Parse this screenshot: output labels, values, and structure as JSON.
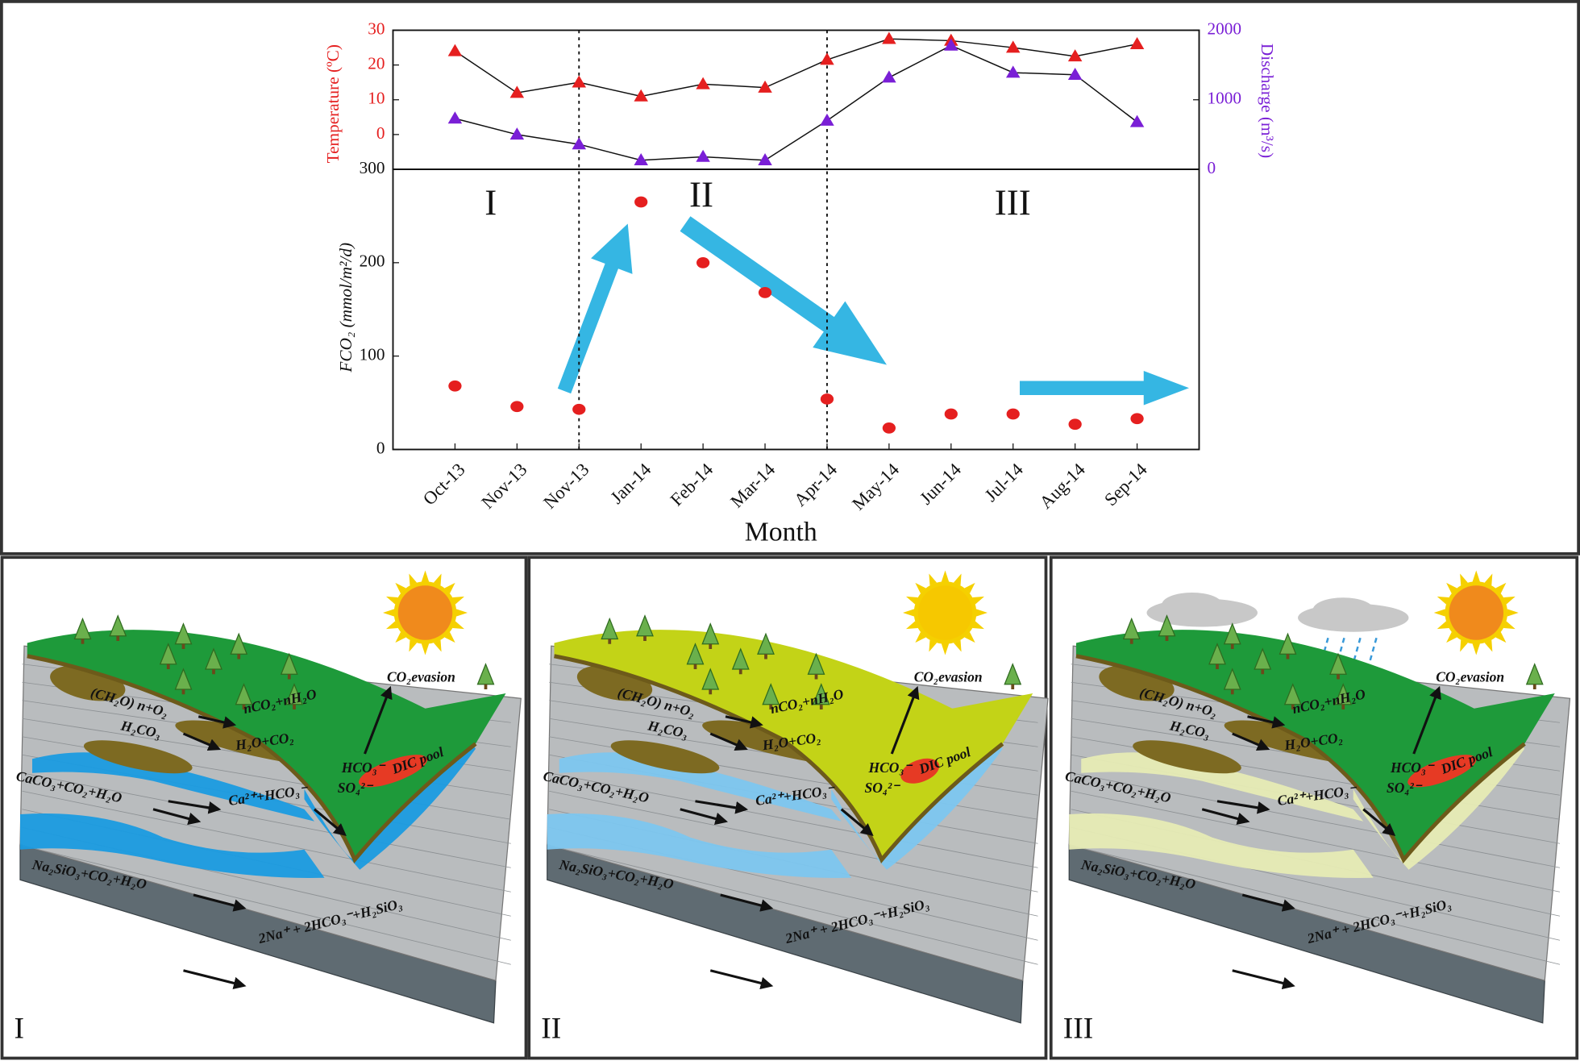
{
  "chart_data": [
    {
      "type": "line",
      "ylabel": "Temperature (ºC)",
      "y2label": "Discharge (m³/s)",
      "ylim": [
        -10,
        30
      ],
      "yticks": [
        0,
        10,
        20,
        30
      ],
      "y2lim": [
        0,
        2000
      ],
      "y2ticks": [
        0,
        1000,
        2000
      ],
      "series": [
        {
          "color": "#e51f1f",
          "values": [
            24,
            12,
            15,
            11,
            14.5,
            13.5,
            21.5,
            27.5,
            27,
            25,
            22.5,
            26
          ]
        },
        {
          "color": "#7a1fd6",
          "axis": "y2",
          "values": [
            730,
            500,
            360,
            130,
            180,
            130,
            700,
            1320,
            1780,
            1390,
            1360,
            680
          ]
        }
      ]
    },
    {
      "type": "scatter",
      "xlabel": "Month",
      "ylabel": "FCO₂ (mmol/m²/d)",
      "categories": [
        "Oct-13",
        "Nov-13",
        "Nov-13",
        "Jan-14",
        "Feb-14",
        "Mar-14",
        "Apr-14",
        "May-14",
        "Jun-14",
        "Jul-14",
        "Aug-14",
        "Sep-14"
      ],
      "values": [
        68,
        46,
        43,
        265,
        200,
        168,
        54,
        23,
        38,
        38,
        27,
        33
      ],
      "color": "#e51f1f",
      "ylim": [
        0,
        300
      ],
      "yticks": [
        0,
        100,
        200,
        300
      ],
      "periods": [
        "I",
        "II",
        "III"
      ]
    }
  ],
  "panels": [
    {
      "label": "I",
      "water": "#1a9be0",
      "land": "#1e9a3a",
      "sun": "#f08a1c",
      "clouds": false,
      "texts": [
        "CO₂evasion",
        "DIC pool",
        "(CH₂O) n+O₂",
        "nCO₂+nH₂O",
        "H₂CO₃",
        "H₂O+CO₂",
        "CaCO₃+CO₂+H₂O",
        "Ca²⁺+HCO₃⁻",
        "HCO₃⁻",
        "SO₄²⁻",
        "Na₂SiO₃+CO₂+H₂O",
        "2Na⁺ + 2HCO₃⁻+H₂SiO₃"
      ]
    },
    {
      "label": "II",
      "water": "#7cc6ef",
      "land": "#c3d317",
      "sun": "#f6c800",
      "clouds": false,
      "texts": [
        "CO₂evasion",
        "DIC pool",
        "(CH₂O) n+O₂",
        "nCO₂+nH₂O",
        "H₂CO₃",
        "H₂O+CO₂",
        "CaCO₃+CO₂+H₂O",
        "Ca²⁺+HCO₃⁻",
        "HCO₃⁻",
        "SO₄²⁻",
        "Na₂SiO₃+CO₂+H₂O",
        "2Na⁺ + 2HCO₃⁻+H₂SiO₃"
      ]
    },
    {
      "label": "III",
      "water": "#e6ebb4",
      "land": "#1e9a3a",
      "sun": "#f08a1c",
      "clouds": true,
      "texts": [
        "CO₂evasion",
        "DIC pool",
        "(CH₂O) n+O₂",
        "nCO₂+nH₂O",
        "H₂CO₃",
        "H₂O+CO₂",
        "CaCO₃+CO₂+H₂O",
        "Ca²⁺+HCO₃⁻",
        "HCO₃⁻",
        "SO₄²⁻",
        "Na₂SiO₃+CO₂+H₂O",
        "2Na⁺ + 2HCO₃⁻+H₂SiO₃"
      ]
    }
  ]
}
